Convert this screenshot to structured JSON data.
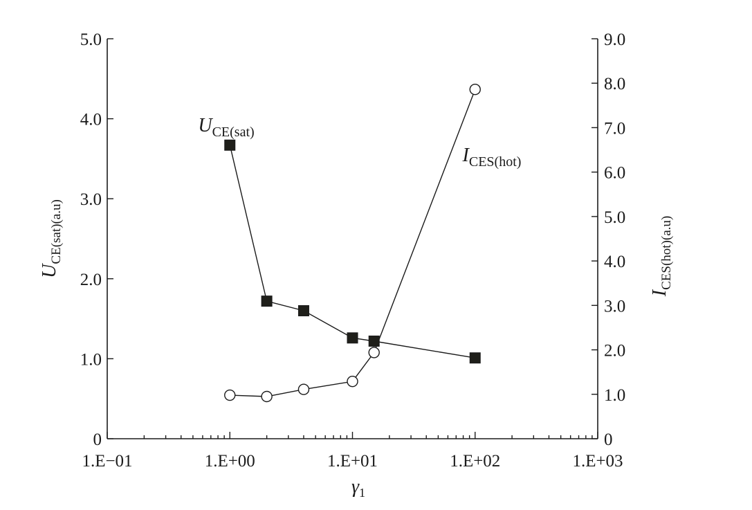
{
  "chart_data": {
    "type": "line",
    "title": "",
    "x_axis": {
      "label": {
        "main": "γ",
        "sub": "1"
      },
      "scale": "log",
      "range": [
        0.1,
        1000
      ],
      "ticks": [
        0.1,
        1,
        10,
        100,
        1000
      ],
      "tick_labels": [
        "1.E−01",
        "1.E+00",
        "1.E+01",
        "1.E+02",
        "1.E+03"
      ]
    },
    "y_left": {
      "label": {
        "main": "U",
        "sub": "CE(sat)(a.u)"
      },
      "range": [
        0,
        5
      ],
      "ticks": [
        0,
        1,
        2,
        3,
        4,
        5
      ],
      "tick_labels": [
        "0",
        "1.0",
        "2.0",
        "3.0",
        "4.0",
        "5.0"
      ]
    },
    "y_right": {
      "label": {
        "main": "I",
        "sub": "CES(hot)(a.u)"
      },
      "range": [
        0,
        9
      ],
      "ticks": [
        0,
        1,
        2,
        3,
        4,
        5,
        6,
        7,
        8,
        9
      ],
      "tick_labels": [
        "0",
        "1.0",
        "2.0",
        "3.0",
        "4.0",
        "5.0",
        "6.0",
        "7.0",
        "8.0",
        "9.0"
      ]
    },
    "grid": false,
    "series": [
      {
        "name": {
          "main": "U",
          "sub": "CE(sat)"
        },
        "axis": "left",
        "marker": "filled-square",
        "color": "#1f1f1a",
        "x": [
          1.0,
          2.0,
          4.0,
          10.0,
          15.0,
          100.0
        ],
        "y": [
          3.67,
          1.72,
          1.6,
          1.26,
          1.22,
          1.01
        ]
      },
      {
        "name": {
          "main": "I",
          "sub": "CES(hot)"
        },
        "axis": "right",
        "marker": "open-circle",
        "color": "#1a1a1a",
        "x": [
          1.0,
          2.0,
          4.0,
          10.0,
          15.0,
          100.0
        ],
        "y": [
          0.98,
          0.95,
          1.11,
          1.29,
          1.94,
          7.86
        ]
      }
    ]
  }
}
